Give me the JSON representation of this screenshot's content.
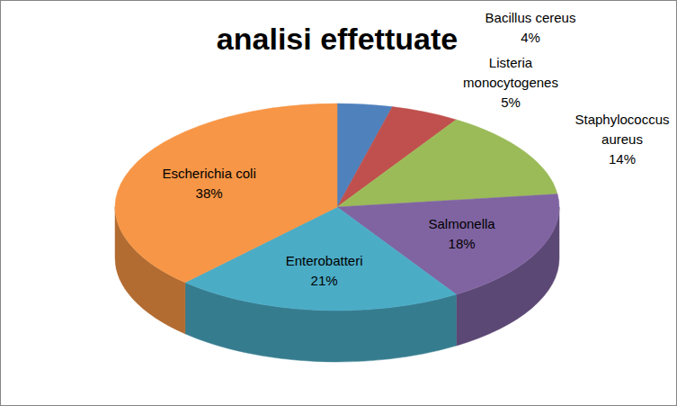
{
  "chart_data": {
    "type": "pie",
    "title": "analisi effettuate",
    "categories": [
      "Bacillus cereus",
      "Listeria monocytogenes",
      "Staphylococcus aureus",
      "Salmonella",
      "Enterobatteri",
      "Escherichia coli"
    ],
    "values": [
      4,
      5,
      14,
      18,
      21,
      38
    ],
    "value_labels": [
      "4%",
      "5%",
      "14%",
      "18%",
      "21%",
      "38%"
    ],
    "colors": [
      "#4f81bd",
      "#c0504d",
      "#9bbb59",
      "#8064a2",
      "#4bacc6",
      "#f79646"
    ],
    "data_labels": true
  }
}
